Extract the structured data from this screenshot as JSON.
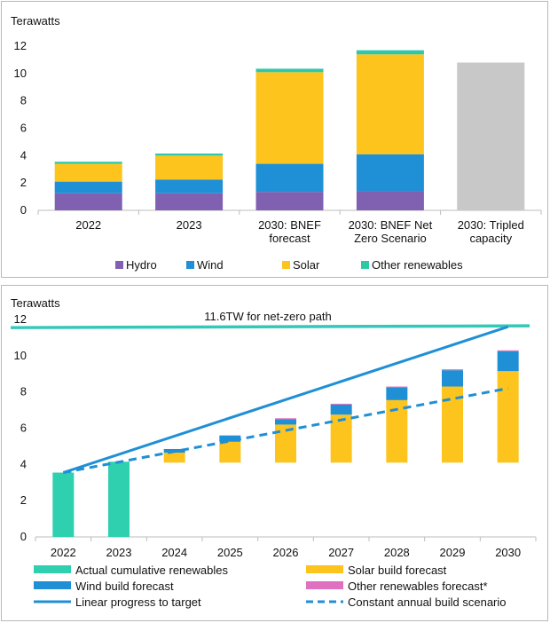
{
  "colors": {
    "hydro": "#8060b0",
    "wind": "#1f8fd6",
    "solar": "#fcc41c",
    "other": "#2ec8a8",
    "tripled": "#c8c8c8",
    "actual": "#2fd0b0",
    "other_forecast": "#e070c0",
    "line": "#1f8fd6",
    "target_line": "#34c8b8",
    "annotation": "#34c8b8"
  },
  "chart_data": [
    {
      "type": "bar",
      "stacked": true,
      "ylabel": "Terawatts",
      "ylim": [
        0,
        12
      ],
      "yticks": [
        0,
        2,
        4,
        6,
        8,
        10,
        12
      ],
      "categories": [
        [
          "2022"
        ],
        [
          "2023"
        ],
        [
          "2030: BNEF",
          "forecast"
        ],
        [
          "2030: BNEF Net",
          "Zero Scenario"
        ],
        [
          "2030: Tripled",
          "capacity"
        ]
      ],
      "series": [
        {
          "name": "Hydro",
          "key": "hydro",
          "values": [
            1.25,
            1.25,
            1.35,
            1.4,
            0
          ]
        },
        {
          "name": "Wind",
          "key": "wind",
          "values": [
            0.85,
            1.0,
            2.05,
            2.7,
            0
          ]
        },
        {
          "name": "Solar",
          "key": "solar",
          "values": [
            1.3,
            1.75,
            6.7,
            7.3,
            0
          ]
        },
        {
          "name": "Other renewables",
          "key": "other",
          "values": [
            0.15,
            0.15,
            0.25,
            0.3,
            0
          ]
        }
      ],
      "extra_bar": {
        "category_index": 4,
        "value": 10.8,
        "key": "tripled"
      },
      "legend": {
        "placement": "bottom",
        "items": [
          "Hydro",
          "Wind",
          "Solar",
          "Other renewables"
        ]
      }
    },
    {
      "type": "bar",
      "stacked": true,
      "ylabel": "Terawatts",
      "ylim": [
        0,
        12
      ],
      "yticks": [
        0,
        2,
        4,
        6,
        8,
        10,
        12
      ],
      "categories": [
        "2022",
        "2023",
        "2024",
        "2025",
        "2026",
        "2027",
        "2028",
        "2029",
        "2030"
      ],
      "base": 4.1,
      "actual": [
        3.55,
        4.15,
        null,
        null,
        null,
        null,
        null,
        null,
        null
      ],
      "solar_build": [
        0,
        0,
        0.55,
        1.15,
        2.1,
        2.65,
        3.45,
        4.2,
        5.05
      ],
      "wind_build": [
        0,
        0,
        0.2,
        0.35,
        0.3,
        0.55,
        0.7,
        0.9,
        1.1
      ],
      "other_build": [
        0,
        0,
        0,
        0,
        0.05,
        0.05,
        0.05,
        0.05,
        0.05
      ],
      "target_line": {
        "label": "11.6TW for net-zero path",
        "y_start": 11.55,
        "y_end": 11.65
      },
      "linear_progress": {
        "from": [
          0,
          3.55
        ],
        "to": [
          8,
          11.6
        ]
      },
      "constant_build": {
        "from": [
          0,
          3.55
        ],
        "to": [
          8,
          8.2
        ]
      },
      "legend": {
        "placement": "bottom",
        "items": [
          {
            "label": "Actual cumulative renewables",
            "kind": "swatch",
            "key": "actual"
          },
          {
            "label": "Solar build forecast",
            "kind": "swatch",
            "key": "solar"
          },
          {
            "label": "Wind build forecast",
            "kind": "swatch",
            "key": "wind"
          },
          {
            "label": "Other renewables forecast*",
            "kind": "swatch",
            "key": "other_forecast"
          },
          {
            "label": "Linear progress to target",
            "kind": "solid",
            "key": "line"
          },
          {
            "label": "Constant annual build scenario",
            "kind": "dashed",
            "key": "line"
          }
        ]
      }
    }
  ]
}
